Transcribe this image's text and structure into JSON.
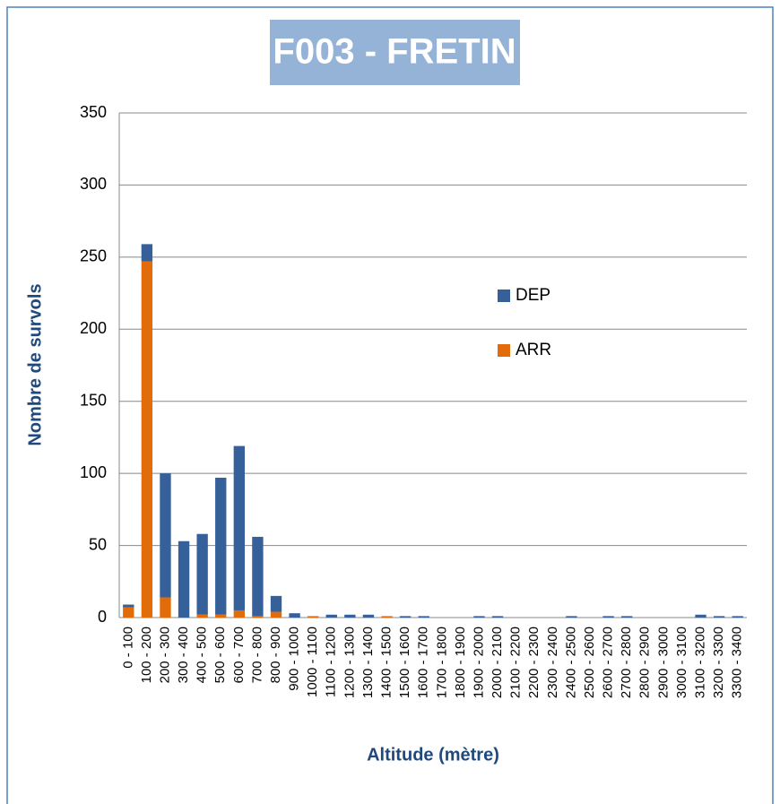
{
  "chart_data": {
    "type": "stacked_bar",
    "title": "F003 - FRETIN",
    "ylabel": "Nombre de survols",
    "xlabel": "Altitude (mètre)",
    "categories": [
      "0 - 100",
      "100 - 200",
      "200 - 300",
      "300 - 400",
      "400 - 500",
      "500 - 600",
      "600 - 700",
      "700 - 800",
      "800 - 900",
      "900 - 1000",
      "1000 - 1100",
      "1100 - 1200",
      "1200 - 1300",
      "1300 - 1400",
      "1400 - 1500",
      "1500 - 1600",
      "1600 - 1700",
      "1700 - 1800",
      "1800 - 1900",
      "1900 - 2000",
      "2000 - 2100",
      "2100 - 2200",
      "2200 - 2300",
      "2300 - 2400",
      "2400 - 2500",
      "2500 - 2600",
      "2600 - 2700",
      "2700 - 2800",
      "2800 - 2900",
      "2900 - 3000",
      "3000 - 3100",
      "3100 - 3200",
      "3200 - 3300",
      "3300 - 3400"
    ],
    "series": [
      {
        "name": "DEP",
        "color": "#35609a",
        "values": [
          2,
          12,
          86,
          53,
          56,
          95,
          114,
          55,
          11,
          3,
          0,
          2,
          2,
          2,
          0,
          1,
          1,
          0,
          0,
          1,
          1,
          0,
          0,
          0,
          1,
          0,
          1,
          1,
          0,
          0,
          0,
          2,
          1,
          1
        ]
      },
      {
        "name": "ARR",
        "color": "#e36c0a",
        "values": [
          7,
          247,
          14,
          0,
          2,
          2,
          5,
          1,
          4,
          0,
          1,
          0,
          0,
          0,
          1,
          0,
          0,
          0,
          0,
          0,
          0,
          0,
          0,
          0,
          0,
          0,
          0,
          0,
          0,
          0,
          0,
          0,
          0,
          0
        ]
      }
    ],
    "ylim": [
      0,
      350
    ],
    "yticks": [
      0,
      50,
      100,
      150,
      200,
      250,
      300,
      350
    ],
    "grid": true
  }
}
